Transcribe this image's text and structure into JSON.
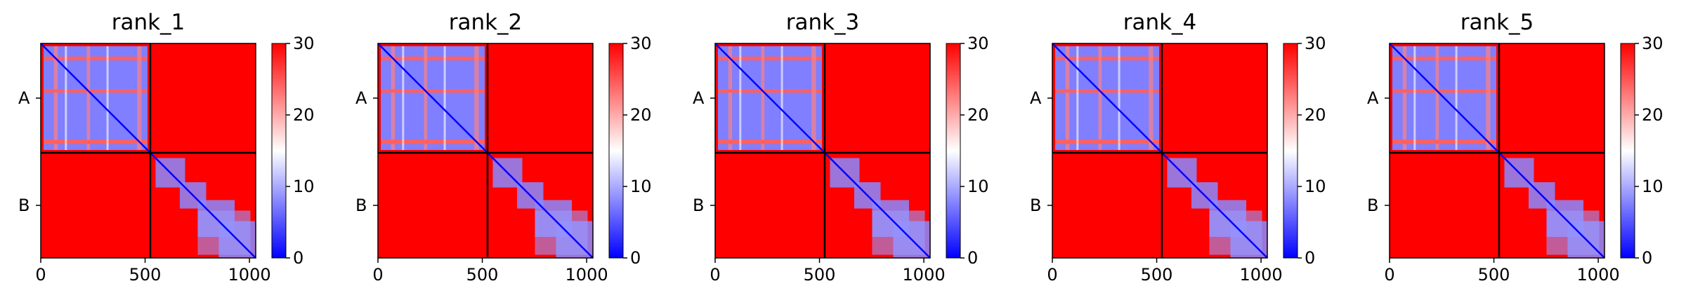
{
  "chart_data": [
    {
      "type": "heatmap",
      "title": "rank_1",
      "chains": [
        "A",
        "B"
      ],
      "chain_boundary": 525,
      "matrix_size": 1030,
      "x_ticks": [
        0,
        500,
        1000
      ],
      "xlim": [
        0,
        1030
      ],
      "colorbar": {
        "ticks": [
          0,
          10,
          20,
          30
        ],
        "range": [
          0,
          30
        ],
        "colormap": "bwr"
      },
      "description_values": {
        "intra_chain_A": "mostly low (5–15) with red bands",
        "intra_chain_B": "block-diagonal low",
        "inter_chain": 30
      }
    },
    {
      "type": "heatmap",
      "title": "rank_2",
      "chains": [
        "A",
        "B"
      ],
      "chain_boundary": 525,
      "matrix_size": 1030,
      "x_ticks": [
        0,
        500,
        1000
      ],
      "xlim": [
        0,
        1030
      ],
      "colorbar": {
        "ticks": [
          0,
          10,
          20,
          30
        ],
        "range": [
          0,
          30
        ],
        "colormap": "bwr"
      }
    },
    {
      "type": "heatmap",
      "title": "rank_3",
      "chains": [
        "A",
        "B"
      ],
      "chain_boundary": 525,
      "matrix_size": 1030,
      "x_ticks": [
        0,
        500,
        1000
      ],
      "xlim": [
        0,
        1030
      ],
      "colorbar": {
        "ticks": [
          0,
          10,
          20,
          30
        ],
        "range": [
          0,
          30
        ],
        "colormap": "bwr"
      }
    },
    {
      "type": "heatmap",
      "title": "rank_4",
      "chains": [
        "A",
        "B"
      ],
      "chain_boundary": 525,
      "matrix_size": 1030,
      "x_ticks": [
        0,
        500,
        1000
      ],
      "xlim": [
        0,
        1030
      ],
      "colorbar": {
        "ticks": [
          0,
          10,
          20,
          30
        ],
        "range": [
          0,
          30
        ],
        "colormap": "bwr"
      }
    },
    {
      "type": "heatmap",
      "title": "rank_5",
      "chains": [
        "A",
        "B"
      ],
      "chain_boundary": 525,
      "matrix_size": 1030,
      "x_ticks": [
        0,
        500,
        1000
      ],
      "xlim": [
        0,
        1030
      ],
      "colorbar": {
        "ticks": [
          0,
          10,
          20,
          30
        ],
        "range": [
          0,
          30
        ],
        "colormap": "bwr"
      }
    }
  ],
  "colors": {
    "low": "#0000ff",
    "mid": "#ffffff",
    "high": "#ff0000",
    "divider": "#000000"
  }
}
